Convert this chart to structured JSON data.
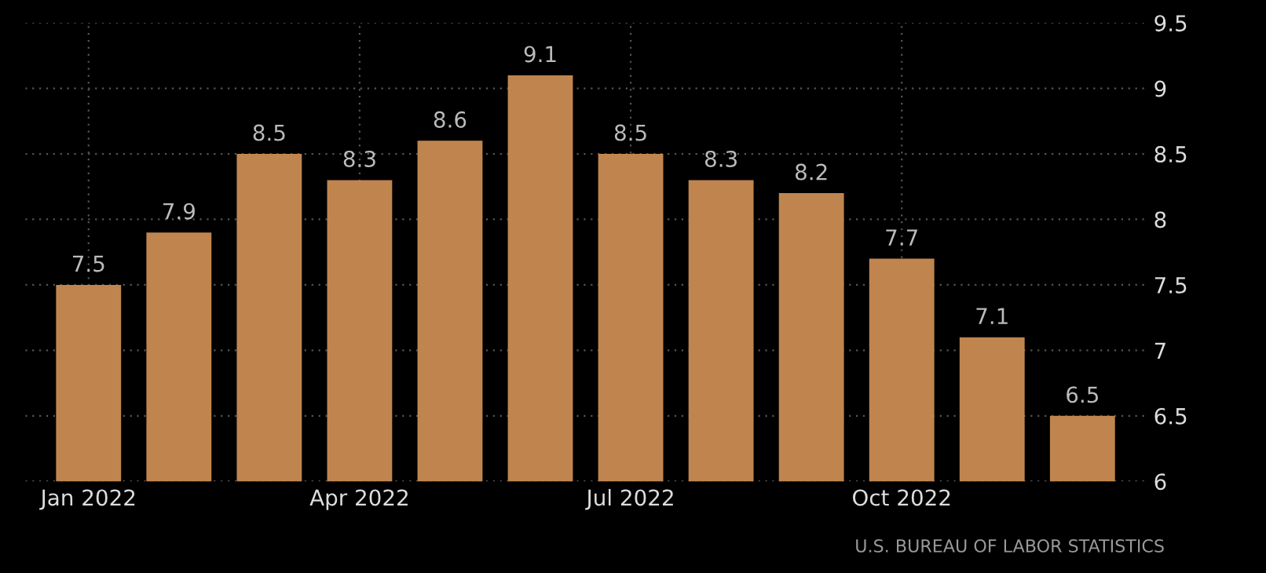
{
  "chart_data": {
    "type": "bar",
    "categories": [
      "Jan 2022",
      null,
      null,
      "Apr 2022",
      null,
      null,
      "Jul 2022",
      null,
      null,
      "Oct 2022",
      null,
      null
    ],
    "values": [
      7.5,
      7.9,
      8.5,
      8.3,
      8.6,
      9.1,
      8.5,
      8.3,
      8.2,
      7.7,
      7.1,
      6.5
    ],
    "color": "#c0854f",
    "ylim": [
      6,
      9.5
    ],
    "yticks": [
      6,
      6.5,
      7,
      7.5,
      8,
      8.5,
      9,
      9.5
    ],
    "grid": true,
    "data_labels": true,
    "annotations": [
      "U.S. BUREAU OF LABOR STATISTICS"
    ]
  }
}
